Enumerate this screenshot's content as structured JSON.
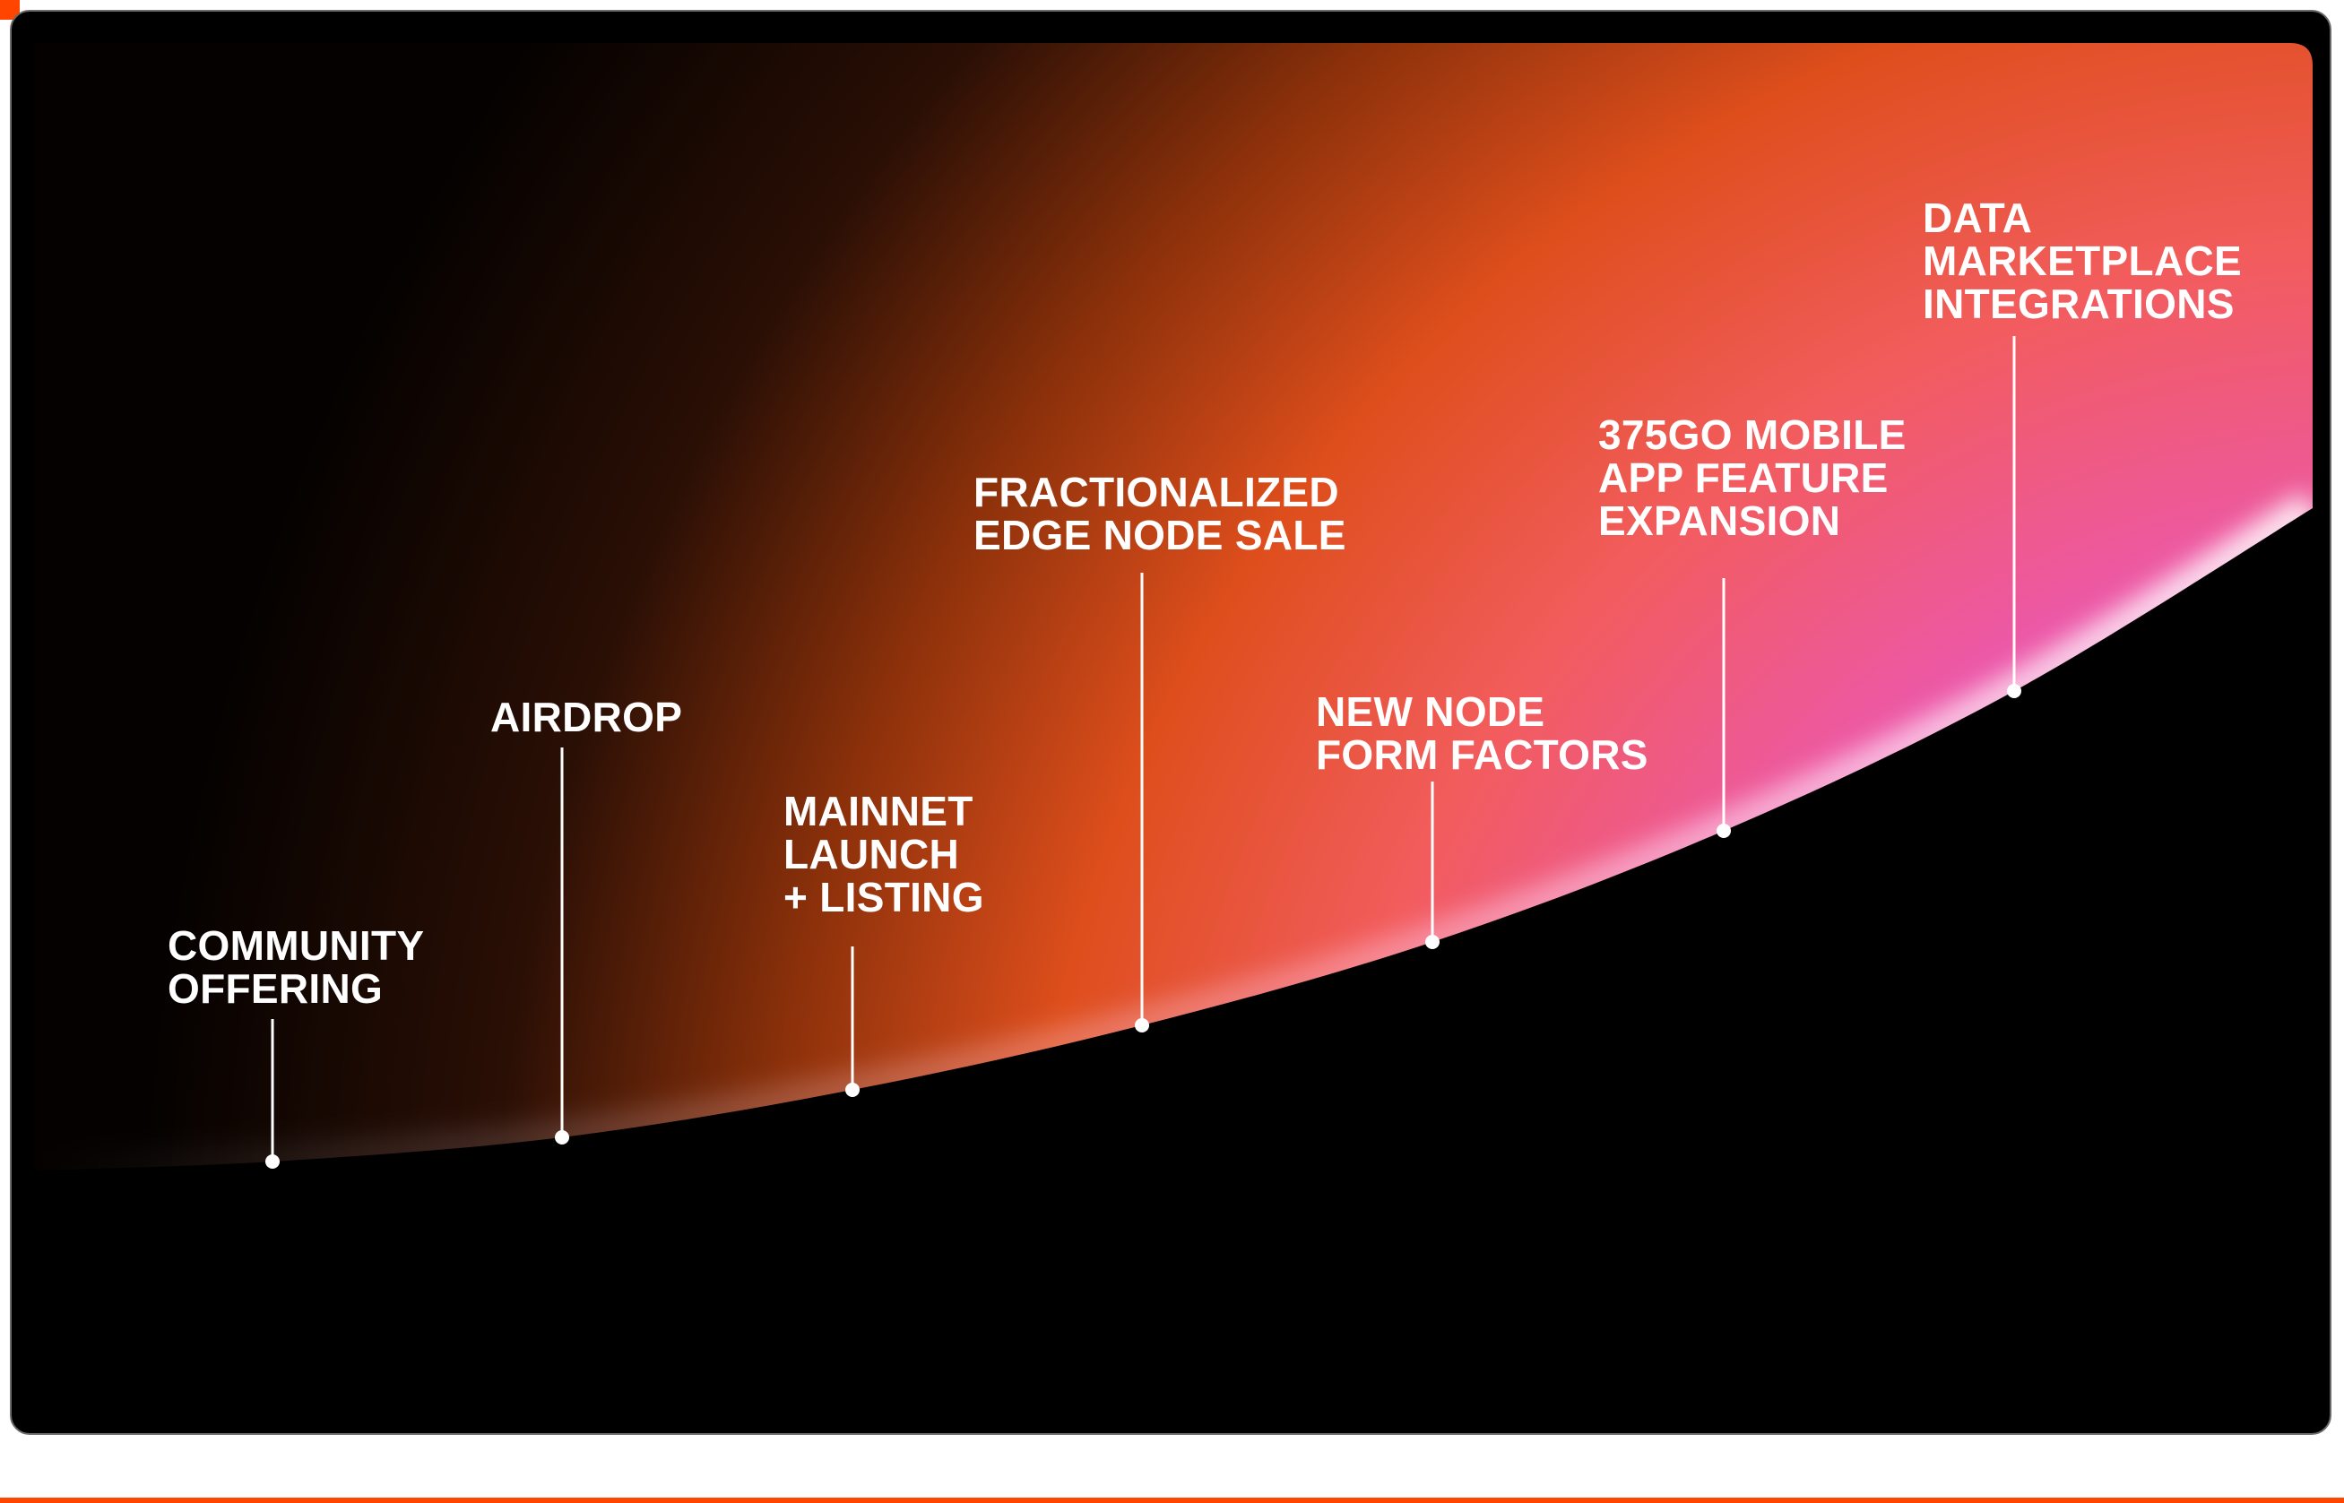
{
  "accent_color": "#ff4500",
  "gradient_colors": [
    "#000000",
    "#7a2a08",
    "#e8501a",
    "#f05a6a",
    "#e35fc6",
    "#f3c0ee"
  ],
  "milestones": [
    {
      "lines": [
        "COMMUNITY",
        "OFFERING"
      ]
    },
    {
      "lines": [
        "AIRDROP"
      ]
    },
    {
      "lines": [
        "MAINNET",
        "LAUNCH",
        "+ LISTING"
      ]
    },
    {
      "lines": [
        "FRACTIONALIZED",
        "EDGE NODE SALE"
      ]
    },
    {
      "lines": [
        "NEW NODE",
        "FORM FACTORS"
      ]
    },
    {
      "lines": [
        "375GO MOBILE",
        "APP FEATURE",
        "EXPANSION"
      ]
    },
    {
      "lines": [
        "DATA",
        "MARKETPLACE",
        "INTEGRATIONS"
      ]
    }
  ]
}
